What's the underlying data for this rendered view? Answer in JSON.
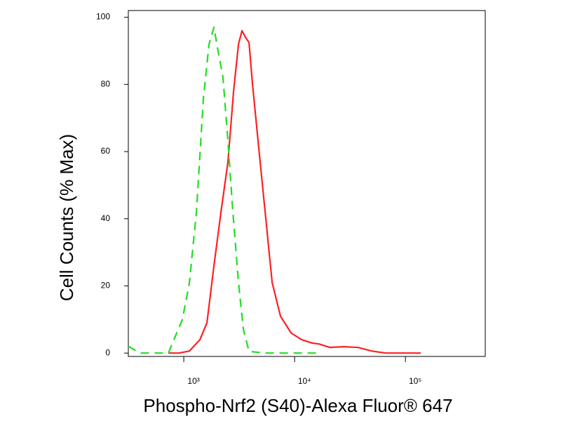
{
  "chart_data": {
    "type": "line",
    "x_label": "Phospho-Nrf2 (S40)-Alexa Fluor® 647",
    "y_label": "Cell Counts (% Max)",
    "x_scale": "log",
    "xlim": [
      316,
      525000
    ],
    "ylim": [
      -1,
      102
    ],
    "xticks": [
      {
        "value": 1000,
        "label": "10³"
      },
      {
        "value": 10000,
        "label": "10⁴"
      },
      {
        "value": 100000,
        "label": "10⁵"
      }
    ],
    "yticks": [
      0,
      20,
      40,
      60,
      80,
      100
    ],
    "series": [
      {
        "color": "#ff2020",
        "dash": "solid",
        "x": [
          726,
          903,
          1124,
          1399,
          1618,
          1871,
          2164,
          2505,
          2815,
          3118,
          3352,
          3607,
          3878,
          4169,
          4688,
          5420,
          6270,
          7464,
          9290,
          11560,
          14390,
          16670,
          20720,
          27720,
          37120,
          49700,
          66500,
          137700
        ],
        "values": [
          0,
          0,
          0.6,
          4,
          9,
          26,
          42,
          57,
          78,
          92,
          96,
          94,
          92.5,
          80,
          63,
          42,
          21,
          11,
          6,
          4,
          3,
          2.7,
          1.7,
          1.9,
          1.7,
          0.6,
          0,
          0
        ]
      },
      {
        "color": "#22dd22",
        "dash": "dashed",
        "x": [
          316,
          405,
          542,
          726,
          839,
          971,
          1124,
          1300,
          1504,
          1690,
          1871,
          2013,
          2259,
          2505,
          2775,
          3118,
          3451,
          3878,
          5420,
          9290,
          16670
        ],
        "values": [
          2,
          0,
          0,
          0,
          5,
          10,
          21,
          42,
          76,
          92,
          97,
          91,
          82,
          63,
          42,
          21,
          7,
          0.5,
          0,
          0,
          0
        ]
      }
    ]
  }
}
